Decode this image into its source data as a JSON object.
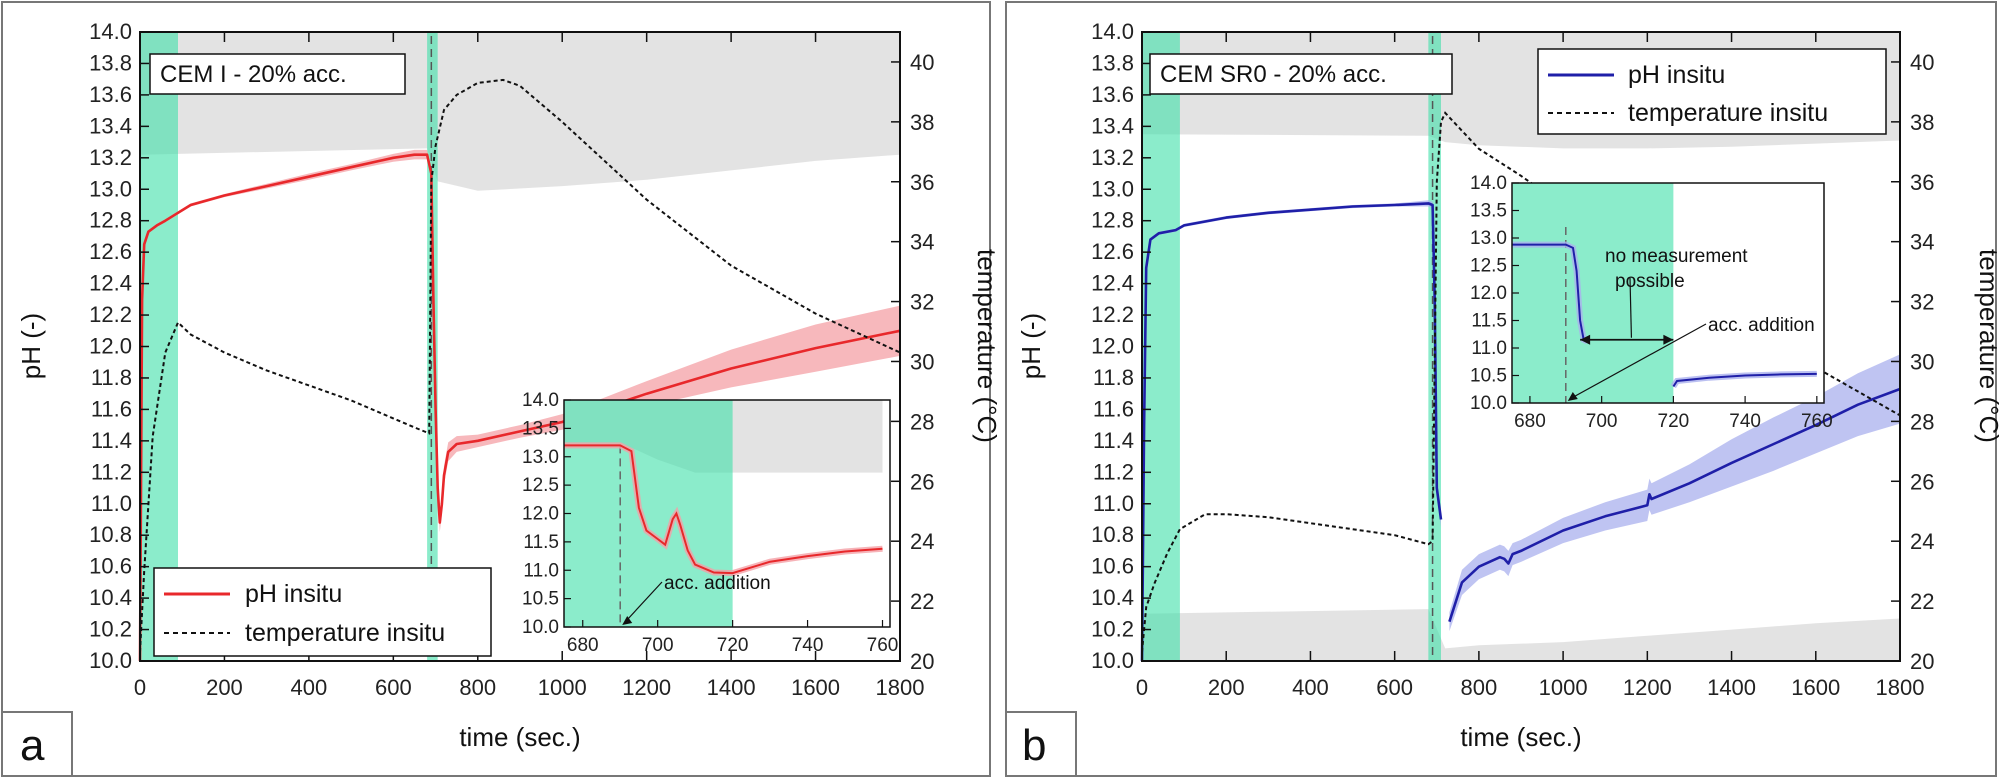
{
  "chart_data": [
    {
      "panel": "a",
      "type": "line",
      "title": "CEM I - 20% acc.",
      "xlabel": "time (sec.)",
      "ylabel": "pH (-)",
      "y2label": "temperature (°C)",
      "xlim": [
        0,
        1800
      ],
      "ylim": [
        10.0,
        14.0
      ],
      "y2lim": [
        20,
        41
      ],
      "x_ticks": [
        "0",
        "200",
        "400",
        "600",
        "800",
        "1000",
        "1200",
        "1400",
        "1600",
        "1800"
      ],
      "y_ticks": [
        "10.0",
        "10.2",
        "10.4",
        "10.6",
        "10.8",
        "11.0",
        "11.2",
        "11.4",
        "11.6",
        "11.8",
        "12.0",
        "12.2",
        "12.4",
        "12.6",
        "12.8",
        "13.0",
        "13.2",
        "13.4",
        "13.6",
        "13.8",
        "14.0"
      ],
      "y2_ticks": [
        "20",
        "22",
        "24",
        "26",
        "28",
        "30",
        "32",
        "34",
        "36",
        "38",
        "40"
      ],
      "legend": [
        "pH insitu",
        "temperature insitu"
      ],
      "legend_position": "bottom-left",
      "green_bands": [
        [
          0,
          90
        ],
        [
          680,
          705
        ]
      ],
      "dashed_line_x": 690,
      "series": [
        {
          "name": "pH insitu",
          "axis": "left",
          "color": "#e8282b",
          "band_color": "#f4a0a6",
          "x": [
            0,
            5,
            10,
            20,
            40,
            60,
            90,
            120,
            200,
            300,
            400,
            500,
            600,
            650,
            680,
            690,
            695,
            700,
            705,
            710,
            715,
            720,
            730,
            750,
            800,
            900,
            1000,
            1200,
            1400,
            1600,
            1800
          ],
          "y": [
            10.0,
            12.3,
            12.65,
            12.73,
            12.77,
            12.8,
            12.85,
            12.9,
            12.96,
            13.02,
            13.08,
            13.14,
            13.2,
            13.22,
            13.22,
            13.1,
            12.3,
            11.6,
            11.1,
            10.88,
            11.0,
            11.18,
            11.33,
            11.38,
            11.4,
            11.46,
            11.52,
            11.7,
            11.86,
            11.99,
            12.1
          ],
          "band_halfwidth": [
            0.01,
            0.01,
            0.01,
            0.01,
            0.01,
            0.01,
            0.01,
            0.01,
            0.01,
            0.015,
            0.02,
            0.02,
            0.025,
            0.03,
            0.03,
            0.03,
            0.03,
            0.04,
            0.05,
            0.06,
            0.06,
            0.06,
            0.06,
            0.05,
            0.04,
            0.04,
            0.05,
            0.08,
            0.12,
            0.15,
            0.16
          ]
        },
        {
          "name": "temperature insitu",
          "axis": "right",
          "color": "#111111",
          "style": "dashed",
          "x": [
            0,
            10,
            30,
            60,
            90,
            120,
            200,
            300,
            400,
            500,
            600,
            650,
            685,
            690,
            700,
            720,
            750,
            800,
            860,
            900,
            1000,
            1200,
            1400,
            1600,
            1800
          ],
          "y": [
            20.3,
            23.0,
            27.5,
            30.3,
            31.3,
            30.9,
            30.3,
            29.7,
            29.2,
            28.7,
            28.1,
            27.8,
            27.6,
            36.0,
            37.2,
            38.4,
            38.9,
            39.3,
            39.4,
            39.2,
            38.0,
            35.4,
            33.2,
            31.6,
            30.3
          ]
        }
      ],
      "gray_band": {
        "x": [
          0,
          680,
          705,
          800,
          1000,
          1200,
          1400,
          1600,
          1800
        ],
        "upper": [
          14.0,
          14.0,
          14.0,
          14.0,
          14.0,
          14.0,
          14.0,
          14.0,
          14.0
        ],
        "lower": [
          13.22,
          13.26,
          13.05,
          12.99,
          13.02,
          13.06,
          13.12,
          13.18,
          13.22
        ]
      },
      "inset": {
        "xlim": [
          675,
          762
        ],
        "ylim": [
          10.0,
          14.0
        ],
        "x_ticks": [
          "680",
          "700",
          "720",
          "740",
          "760"
        ],
        "y_ticks": [
          "10.0",
          "10.5",
          "11.0",
          "11.5",
          "12.0",
          "12.5",
          "13.0",
          "13.5",
          "14.0"
        ],
        "annotation": "acc. addition",
        "green_band": [
          675,
          720
        ],
        "dashed_line_x": 690,
        "gray_band": {
          "x": [
            675,
            690,
            700,
            710,
            720,
            760
          ],
          "upper": [
            14.0,
            14.0,
            14.0,
            14.0,
            14.0,
            14.0
          ],
          "lower": [
            13.25,
            13.25,
            12.95,
            12.72,
            12.72,
            12.72
          ]
        },
        "series": [
          {
            "name": "pH insitu",
            "x": [
              675,
              690,
              693,
              695,
              697,
              700,
              702,
              704,
              705,
              706,
              708,
              710,
              715,
              720,
              730,
              740,
              750,
              760
            ],
            "y": [
              13.2,
              13.2,
              13.1,
              12.1,
              11.7,
              11.55,
              11.45,
              11.9,
              12.0,
              11.8,
              11.35,
              11.1,
              10.96,
              10.95,
              11.15,
              11.25,
              11.33,
              11.38
            ]
          }
        ]
      }
    },
    {
      "panel": "b",
      "type": "line",
      "title": "CEM SR0 - 20% acc.",
      "xlabel": "time (sec.)",
      "ylabel": "pH (-)",
      "y2label": "temperature (°C)",
      "xlim": [
        0,
        1800
      ],
      "ylim": [
        10.0,
        14.0
      ],
      "y2lim": [
        20,
        41
      ],
      "x_ticks": [
        "0",
        "200",
        "400",
        "600",
        "800",
        "1000",
        "1200",
        "1400",
        "1600",
        "1800"
      ],
      "y_ticks": [
        "10.0",
        "10.2",
        "10.4",
        "10.6",
        "10.8",
        "11.0",
        "11.2",
        "11.4",
        "11.6",
        "11.8",
        "12.0",
        "12.2",
        "12.4",
        "12.6",
        "12.8",
        "13.0",
        "13.2",
        "13.4",
        "13.6",
        "13.8",
        "14.0"
      ],
      "y2_ticks": [
        "20",
        "22",
        "24",
        "26",
        "28",
        "30",
        "32",
        "34",
        "36",
        "38",
        "40"
      ],
      "legend": [
        "pH insitu",
        "temperature insitu"
      ],
      "legend_position": "top-right",
      "green_bands": [
        [
          0,
          90
        ],
        [
          680,
          710
        ]
      ],
      "dashed_line_x": 690,
      "series": [
        {
          "name": "pH insitu",
          "axis": "left",
          "color": "#1f1fa8",
          "band_color": "#aab0ee",
          "x": [
            0,
            5,
            10,
            20,
            40,
            80,
            100,
            200,
            300,
            400,
            500,
            600,
            680,
            690,
            695,
            700,
            710,
            720,
            730,
            760,
            800,
            850,
            860,
            870,
            880,
            900,
            1000,
            1100,
            1200,
            1205,
            1210,
            1300,
            1400,
            1500,
            1600,
            1700,
            1800
          ],
          "y": [
            10.0,
            11.5,
            12.5,
            12.68,
            12.72,
            12.74,
            12.77,
            12.82,
            12.85,
            12.87,
            12.89,
            12.9,
            12.91,
            12.9,
            12.3,
            11.1,
            10.9,
            null,
            10.25,
            10.5,
            10.6,
            10.66,
            10.65,
            10.62,
            10.68,
            10.7,
            10.83,
            10.92,
            10.99,
            11.06,
            11.03,
            11.13,
            11.26,
            11.38,
            11.5,
            11.63,
            11.73
          ],
          "band_halfwidth": [
            0.01,
            0.01,
            0.01,
            0.01,
            0.01,
            0.01,
            0.01,
            0.01,
            0.01,
            0.01,
            0.01,
            0.01,
            0.02,
            0.02,
            0.02,
            0.04,
            0.05,
            0.05,
            0.06,
            0.08,
            0.08,
            0.08,
            0.08,
            0.08,
            0.07,
            0.07,
            0.08,
            0.09,
            0.1,
            0.1,
            0.1,
            0.12,
            0.15,
            0.17,
            0.18,
            0.2,
            0.22
          ]
        },
        {
          "name": "temperature insitu",
          "axis": "right",
          "color": "#111111",
          "style": "dashed",
          "x": [
            0,
            10,
            30,
            60,
            90,
            150,
            200,
            300,
            400,
            500,
            600,
            680,
            690,
            700,
            710,
            720,
            800,
            900,
            1000,
            1200,
            1400,
            1600,
            1800
          ],
          "y": [
            20.3,
            21.8,
            22.6,
            23.6,
            24.4,
            24.9,
            24.9,
            24.8,
            24.6,
            24.4,
            24.2,
            23.9,
            24.0,
            36.0,
            38.0,
            38.3,
            37.1,
            36.2,
            35.2,
            33.5,
            31.6,
            29.8,
            28.2
          ]
        }
      ],
      "gray_band_top": {
        "x": [
          0,
          680,
          720,
          800,
          1000,
          1200,
          1400,
          1600,
          1800
        ],
        "upper": [
          14.0,
          14.0,
          14.0,
          14.0,
          14.0,
          14.0,
          14.0,
          14.0,
          14.0
        ],
        "lower": [
          13.35,
          13.34,
          13.3,
          13.28,
          13.26,
          13.26,
          13.27,
          13.29,
          13.31
        ]
      },
      "gray_band_bottom": {
        "x": [
          0,
          680,
          720,
          800,
          1000,
          1200,
          1400,
          1600,
          1800
        ],
        "upper": [
          10.3,
          10.33,
          10.08,
          10.1,
          10.12,
          10.16,
          10.2,
          10.24,
          10.27
        ],
        "lower": [
          10.0,
          10.0,
          10.0,
          10.0,
          10.0,
          10.0,
          10.0,
          10.0,
          10.0
        ]
      },
      "inset": {
        "xlim": [
          675,
          762
        ],
        "ylim": [
          10.0,
          14.0
        ],
        "x_ticks": [
          "680",
          "700",
          "720",
          "740",
          "760"
        ],
        "y_ticks": [
          "10.0",
          "10.5",
          "11.0",
          "11.5",
          "12.0",
          "12.5",
          "13.0",
          "13.5",
          "14.0"
        ],
        "annotations": [
          "no measurement",
          "possible",
          "acc. addition"
        ],
        "green_band": [
          675,
          720
        ],
        "dashed_line_x": 690,
        "arrow_x": [
          694,
          720
        ],
        "arrow_y": 11.15,
        "series": [
          {
            "name": "pH insitu",
            "x": [
              675,
              690,
              692,
              693,
              694,
              695,
              696
            ],
            "y": [
              12.88,
              12.88,
              12.82,
              12.4,
              11.5,
              11.15,
              11.12
            ]
          },
          {
            "name": "pH insitu",
            "x": [
              720,
              721,
              730,
              740,
              750,
              760
            ],
            "y": [
              10.3,
              10.4,
              10.46,
              10.5,
              10.52,
              10.53
            ]
          }
        ]
      }
    }
  ],
  "panel_labels": [
    "a",
    "b"
  ]
}
